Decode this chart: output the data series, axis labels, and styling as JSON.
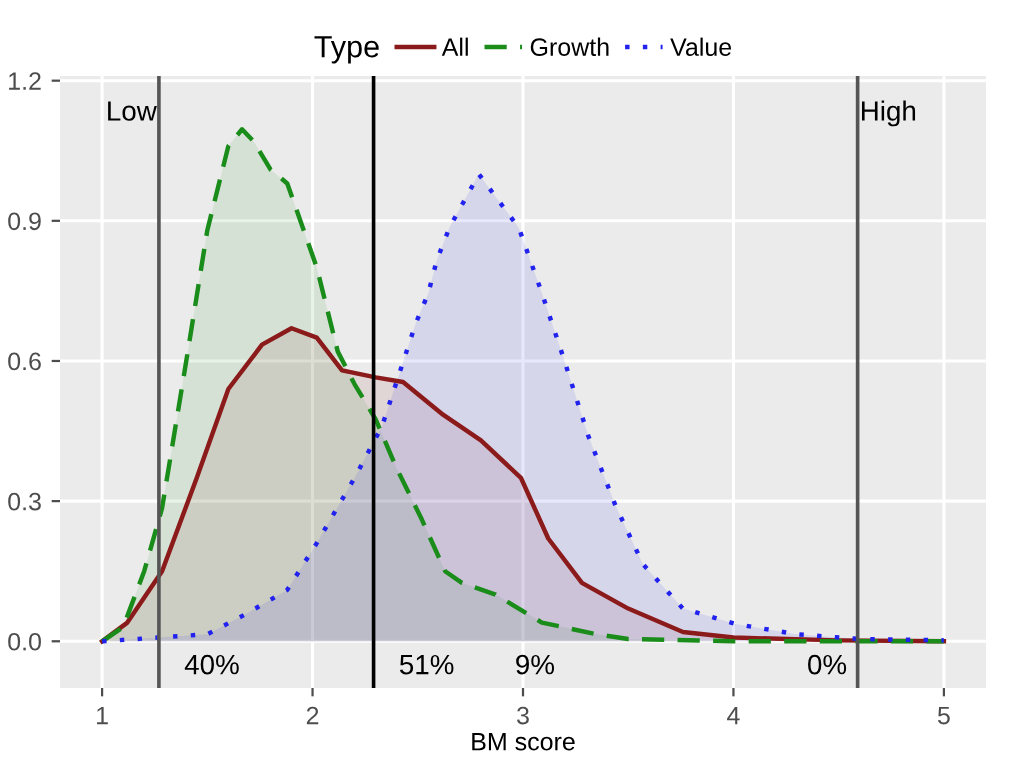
{
  "chart_data": {
    "type": "area",
    "xlabel": "BM score",
    "legend_title": "Type",
    "legend": "top",
    "grid": true,
    "xlim": [
      0.8,
      5.2
    ],
    "xticks": [
      1,
      2,
      3,
      4,
      5
    ],
    "ylim": [
      -0.1,
      1.21
    ],
    "yticks": [
      {
        "value": 0,
        "label": "0.0"
      },
      {
        "value": 0.3,
        "label": "0.3"
      },
      {
        "value": 0.6,
        "label": "0.6"
      },
      {
        "value": 0.9,
        "label": "0.9"
      },
      {
        "value": 1.2,
        "label": "1.2"
      }
    ],
    "series": [
      {
        "name": "All",
        "color": "#8b1a1a",
        "line_style": "solid",
        "x": [
          1.0,
          1.12,
          1.285,
          1.45,
          1.6,
          1.76,
          1.9,
          2.02,
          2.14,
          2.3,
          2.43,
          2.62,
          2.8,
          2.99,
          3.12,
          3.28,
          3.5,
          3.76,
          4.0,
          4.5,
          5.0
        ],
        "values": [
          0,
          0.04,
          0.15,
          0.35,
          0.54,
          0.635,
          0.67,
          0.65,
          0.58,
          0.565,
          0.555,
          0.485,
          0.43,
          0.35,
          0.22,
          0.125,
          0.07,
          0.02,
          0.008,
          0.002,
          0
        ]
      },
      {
        "name": "Growth",
        "color": "#1a8c1a",
        "line_style": "dashed",
        "x": [
          1.0,
          1.1,
          1.2,
          1.285,
          1.4,
          1.5,
          1.6,
          1.665,
          1.72,
          1.8,
          1.88,
          2.02,
          2.12,
          2.2,
          2.3,
          2.4,
          2.52,
          2.63,
          2.71,
          2.87,
          3.09,
          3.35,
          3.5,
          4.0,
          5.0
        ],
        "values": [
          0,
          0.03,
          0.15,
          0.285,
          0.6,
          0.88,
          1.06,
          1.096,
          1.07,
          1.01,
          0.98,
          0.8,
          0.62,
          0.55,
          0.475,
          0.37,
          0.26,
          0.15,
          0.125,
          0.1,
          0.04,
          0.015,
          0.005,
          0,
          0
        ]
      },
      {
        "name": "Value",
        "color": "#2222ee",
        "line_style": "dotted",
        "x": [
          1.0,
          1.5,
          1.69,
          1.88,
          2.02,
          2.2,
          2.33,
          2.49,
          2.55,
          2.59,
          2.65,
          2.79,
          2.98,
          3.09,
          3.19,
          3.31,
          3.44,
          3.57,
          3.76,
          4.01,
          4.3,
          4.6,
          5.0
        ],
        "values": [
          0,
          0.015,
          0.06,
          0.11,
          0.21,
          0.35,
          0.46,
          0.68,
          0.745,
          0.815,
          0.885,
          1.0,
          0.885,
          0.745,
          0.61,
          0.44,
          0.29,
          0.165,
          0.07,
          0.037,
          0.015,
          0.005,
          0.002
        ]
      }
    ],
    "ref_lines": [
      {
        "axis": "x",
        "value": 1.27,
        "label": "Low",
        "color": "#555555"
      },
      {
        "axis": "x",
        "value": 2.29,
        "label": null,
        "color": "#000000"
      },
      {
        "axis": "x",
        "value": 4.59,
        "label": "High",
        "color": "#555555"
      }
    ],
    "annotations": [
      "40%",
      "51%",
      "9%",
      "0%"
    ]
  }
}
